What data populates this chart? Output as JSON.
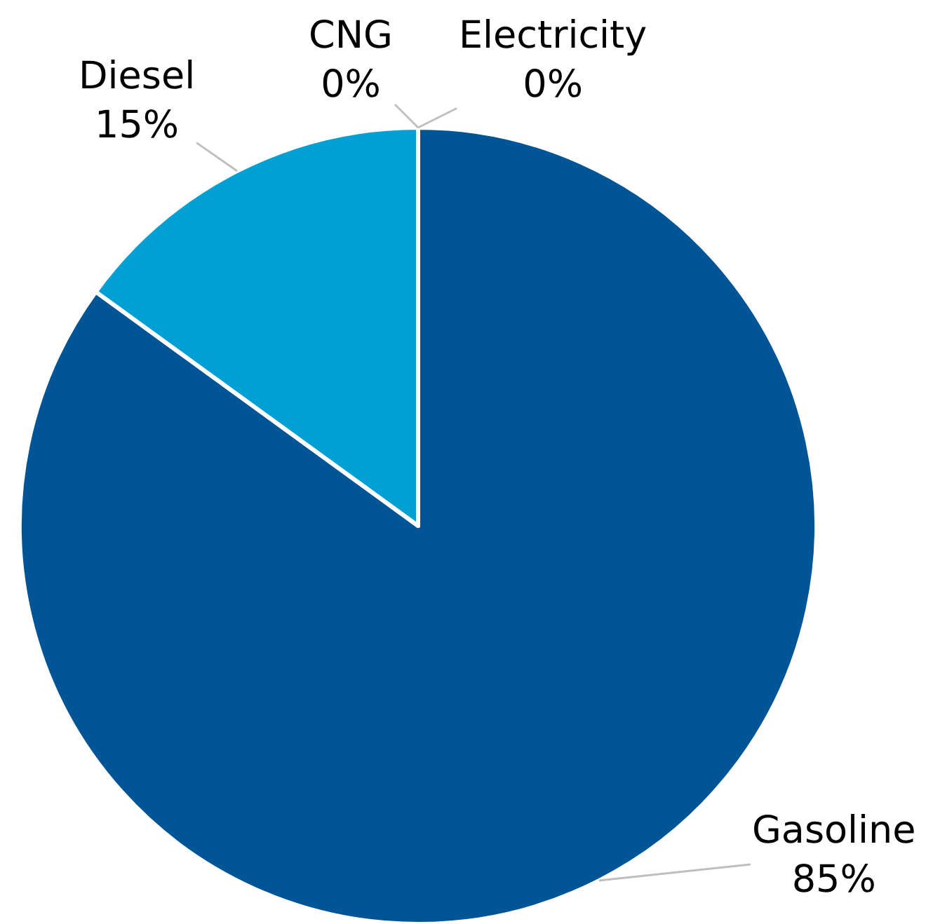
{
  "chart_data": {
    "type": "pie",
    "categories": [
      "Gasoline",
      "Diesel",
      "CNG",
      "Electricity"
    ],
    "values": [
      85,
      15,
      0,
      0
    ],
    "value_labels": [
      "85%",
      "15%",
      "0%",
      "0%"
    ],
    "colors": [
      "#005596",
      "#009fd4",
      "#7f7f7f",
      "#a5a5a5"
    ]
  }
}
